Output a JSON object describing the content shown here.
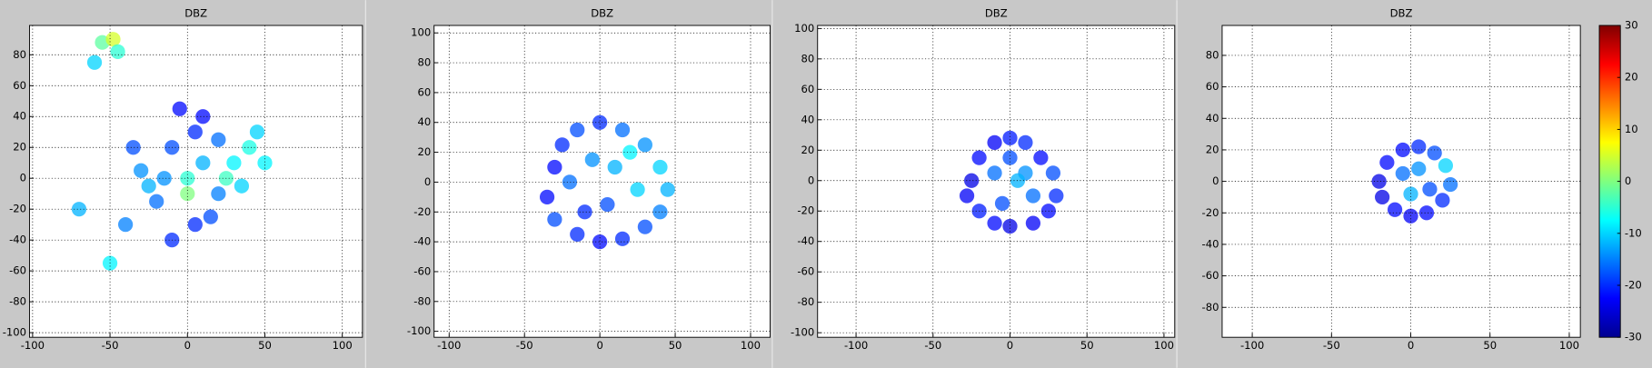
{
  "chart_data": [
    {
      "type": "scatter",
      "title": "DBZ",
      "xlim": [
        -102,
        113
      ],
      "ylim": [
        -103,
        99
      ],
      "xticks": [
        -100,
        -50,
        0,
        50,
        100
      ],
      "yticks": [
        -100,
        -80,
        -60,
        -40,
        -20,
        0,
        20,
        40,
        60,
        80
      ],
      "grid": true,
      "x": [
        -55,
        -48,
        -45,
        -60,
        0,
        -10,
        10,
        20,
        30,
        40,
        -20,
        -30,
        5,
        15,
        -5,
        25,
        35,
        -40,
        -50,
        -70,
        -10,
        10,
        0,
        -35,
        45,
        -15,
        20,
        50,
        -25,
        5
      ],
      "y": [
        88,
        90,
        82,
        75,
        0,
        20,
        10,
        -10,
        10,
        20,
        -15,
        5,
        30,
        -25,
        45,
        0,
        -5,
        -30,
        -55,
        -20,
        -40,
        40,
        -10,
        20,
        30,
        0,
        25,
        10,
        -5,
        -30
      ],
      "values": [
        -2,
        5,
        -5,
        -10,
        -5,
        -18,
        -12,
        -15,
        -8,
        -6,
        -16,
        -14,
        -20,
        -18,
        -22,
        -4,
        -10,
        -15,
        -8,
        -12,
        -20,
        -22,
        0,
        -18,
        -10,
        -14,
        -16,
        -8,
        -12,
        -20
      ]
    },
    {
      "type": "scatter",
      "title": "DBZ",
      "xlim": [
        -110,
        113
      ],
      "ylim": [
        -104,
        105
      ],
      "xticks": [
        -100,
        -50,
        0,
        50,
        100
      ],
      "yticks": [
        -100,
        -80,
        -60,
        -40,
        -20,
        0,
        20,
        40,
        60,
        80,
        100
      ],
      "grid": true,
      "x": [
        -30,
        -25,
        -15,
        0,
        15,
        30,
        40,
        45,
        40,
        30,
        15,
        0,
        -15,
        -30,
        -35,
        -20,
        -5,
        10,
        25,
        5,
        -10,
        20
      ],
      "y": [
        10,
        25,
        35,
        40,
        35,
        25,
        10,
        -5,
        -20,
        -30,
        -38,
        -40,
        -35,
        -25,
        -10,
        0,
        15,
        10,
        -5,
        -15,
        -20,
        20
      ],
      "values": [
        -22,
        -20,
        -18,
        -20,
        -16,
        -14,
        -10,
        -12,
        -15,
        -18,
        -20,
        -22,
        -20,
        -18,
        -22,
        -16,
        -14,
        -12,
        -10,
        -18,
        -20,
        -8
      ]
    },
    {
      "type": "scatter",
      "title": "DBZ",
      "xlim": [
        -125,
        107
      ],
      "ylim": [
        -103,
        102
      ],
      "xticks": [
        -100,
        -50,
        0,
        50,
        100
      ],
      "yticks": [
        -100,
        -80,
        -60,
        -40,
        -20,
        0,
        20,
        40,
        60,
        80,
        100
      ],
      "grid": true,
      "x": [
        -25,
        -20,
        -10,
        0,
        10,
        20,
        28,
        30,
        25,
        15,
        0,
        -10,
        -20,
        -28,
        -10,
        0,
        10,
        15,
        -5,
        5
      ],
      "y": [
        0,
        15,
        25,
        28,
        25,
        15,
        5,
        -10,
        -20,
        -28,
        -30,
        -28,
        -20,
        -10,
        5,
        15,
        5,
        -10,
        -15,
        0
      ],
      "values": [
        -24,
        -22,
        -23,
        -21,
        -20,
        -22,
        -18,
        -20,
        -22,
        -23,
        -24,
        -22,
        -21,
        -23,
        -16,
        -18,
        -14,
        -16,
        -18,
        -12
      ]
    },
    {
      "type": "scatter",
      "title": "DBZ",
      "xlim": [
        -119,
        107
      ],
      "ylim": [
        -99,
        99
      ],
      "xticks": [
        -100,
        -50,
        0,
        50,
        100
      ],
      "yticks": [
        -80,
        -60,
        -40,
        -20,
        0,
        20,
        40,
        60,
        80
      ],
      "grid": true,
      "x": [
        -20,
        -15,
        -5,
        5,
        15,
        22,
        25,
        20,
        10,
        0,
        -10,
        -18,
        -5,
        5,
        12,
        0
      ],
      "y": [
        0,
        12,
        20,
        22,
        18,
        10,
        -2,
        -12,
        -20,
        -22,
        -18,
        -10,
        5,
        8,
        -5,
        -8
      ],
      "values": [
        -24,
        -22,
        -22,
        -20,
        -18,
        -10,
        -16,
        -20,
        -22,
        -23,
        -22,
        -24,
        -16,
        -14,
        -18,
        -12
      ]
    }
  ],
  "colorbar": {
    "clim": [
      -30,
      30
    ],
    "ticks": [
      30,
      20,
      10,
      0,
      -10,
      -20,
      -30
    ],
    "colormap": "jet"
  }
}
